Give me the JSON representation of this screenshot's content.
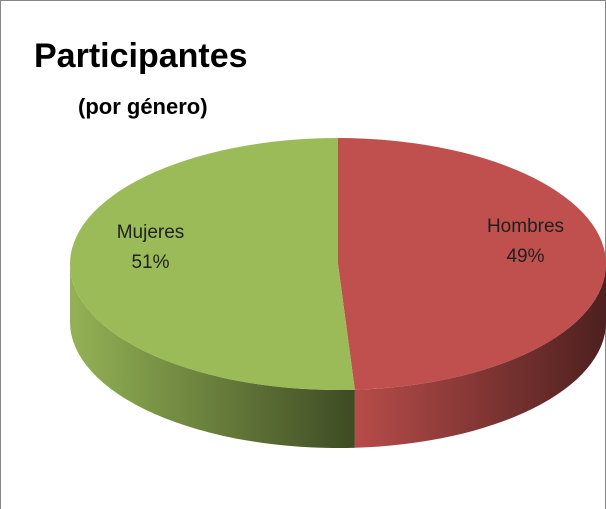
{
  "chart_data": {
    "type": "pie",
    "title": "Participantes",
    "subtitle": "(por género)",
    "categories": [
      "Hombres",
      "Mujeres"
    ],
    "values": [
      49,
      51
    ],
    "value_labels": [
      "49%",
      "51%"
    ],
    "colors": [
      "#c0504d",
      "#9bbb59"
    ]
  }
}
